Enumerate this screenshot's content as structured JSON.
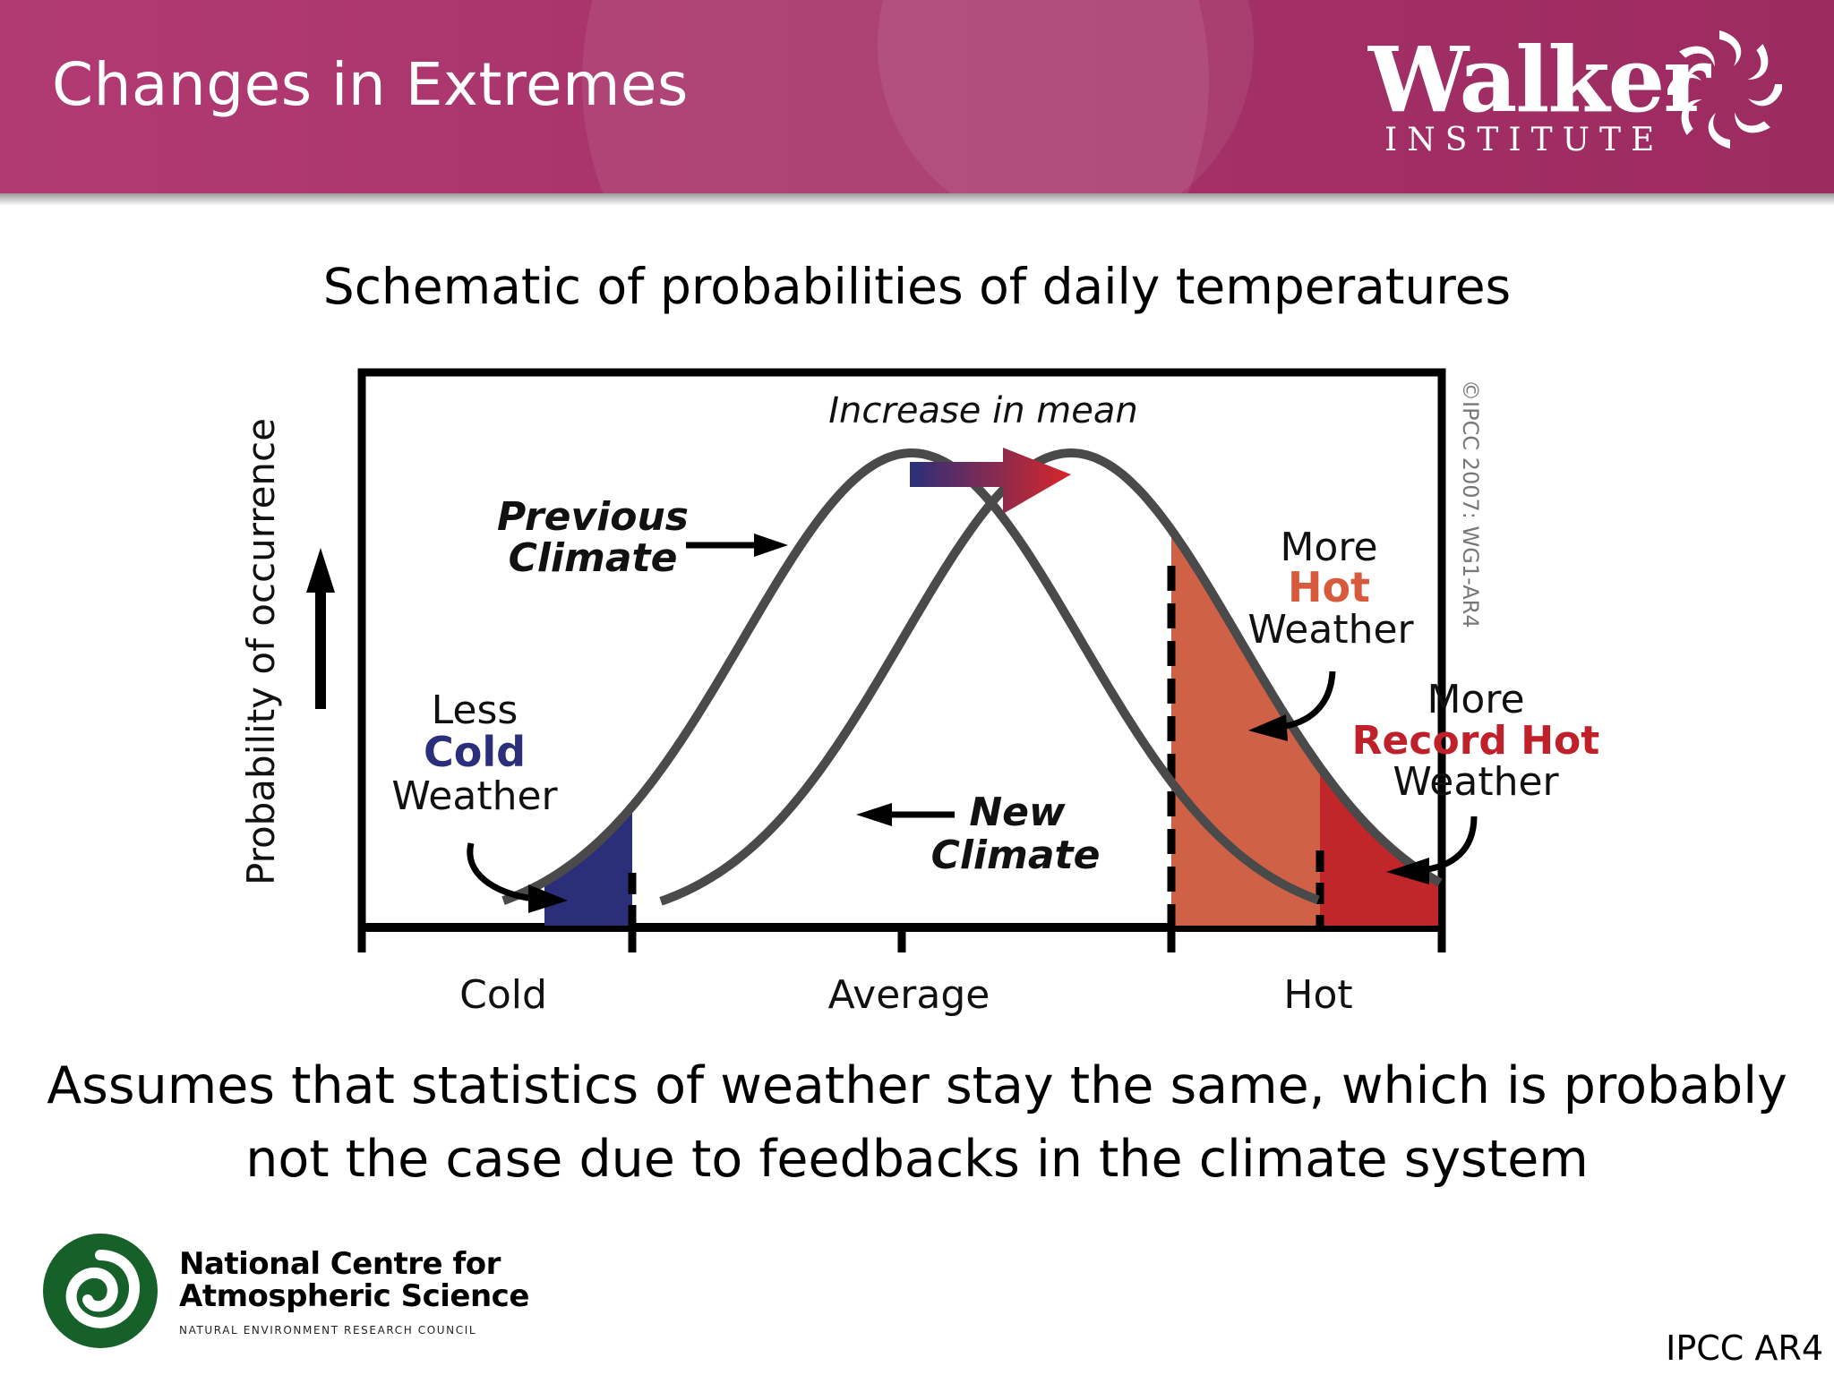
{
  "header": {
    "title": "Changes in Extremes",
    "logo_word": "Walker",
    "logo_subword": "INSTITUTE",
    "colors": {
      "banner": "#a7336a",
      "text": "#ffffff"
    }
  },
  "subtitle": "Schematic of probabilities of daily temperatures",
  "diagram": {
    "y_axis_label": "Probability of occurrence",
    "x_ticks": [
      "Cold",
      "Average",
      "Hot"
    ],
    "increase_label": "Increase in mean",
    "copyright": "©IPCC 2007: WG1-AR4",
    "previous_climate": [
      "Previous",
      "Climate"
    ],
    "new_climate": [
      "New",
      "Climate"
    ],
    "less_cold": [
      "Less",
      "Cold",
      "Weather"
    ],
    "more_hot": [
      "More",
      "Hot",
      "Weather"
    ],
    "more_record_hot": [
      "More",
      "Record Hot",
      "Weather"
    ],
    "colors": {
      "curve": "#4a4a4a",
      "cold_fill": "#2b2f7a",
      "hot_fill": "#cf6147",
      "record_fill": "#c0262a",
      "hot_text": "#d85a3c",
      "record_text": "#c0202a",
      "cold_text": "#2b2f7a"
    }
  },
  "caption": [
    "Assumes that statistics of weather stay the same, which is probably",
    "not the case due to feedbacks in the climate system"
  ],
  "footer": {
    "org_name": [
      "National Centre for",
      "Atmospheric Science"
    ],
    "org_sub": "NATURAL ENVIRONMENT RESEARCH COUNCIL",
    "source": "IPCC AR4"
  }
}
